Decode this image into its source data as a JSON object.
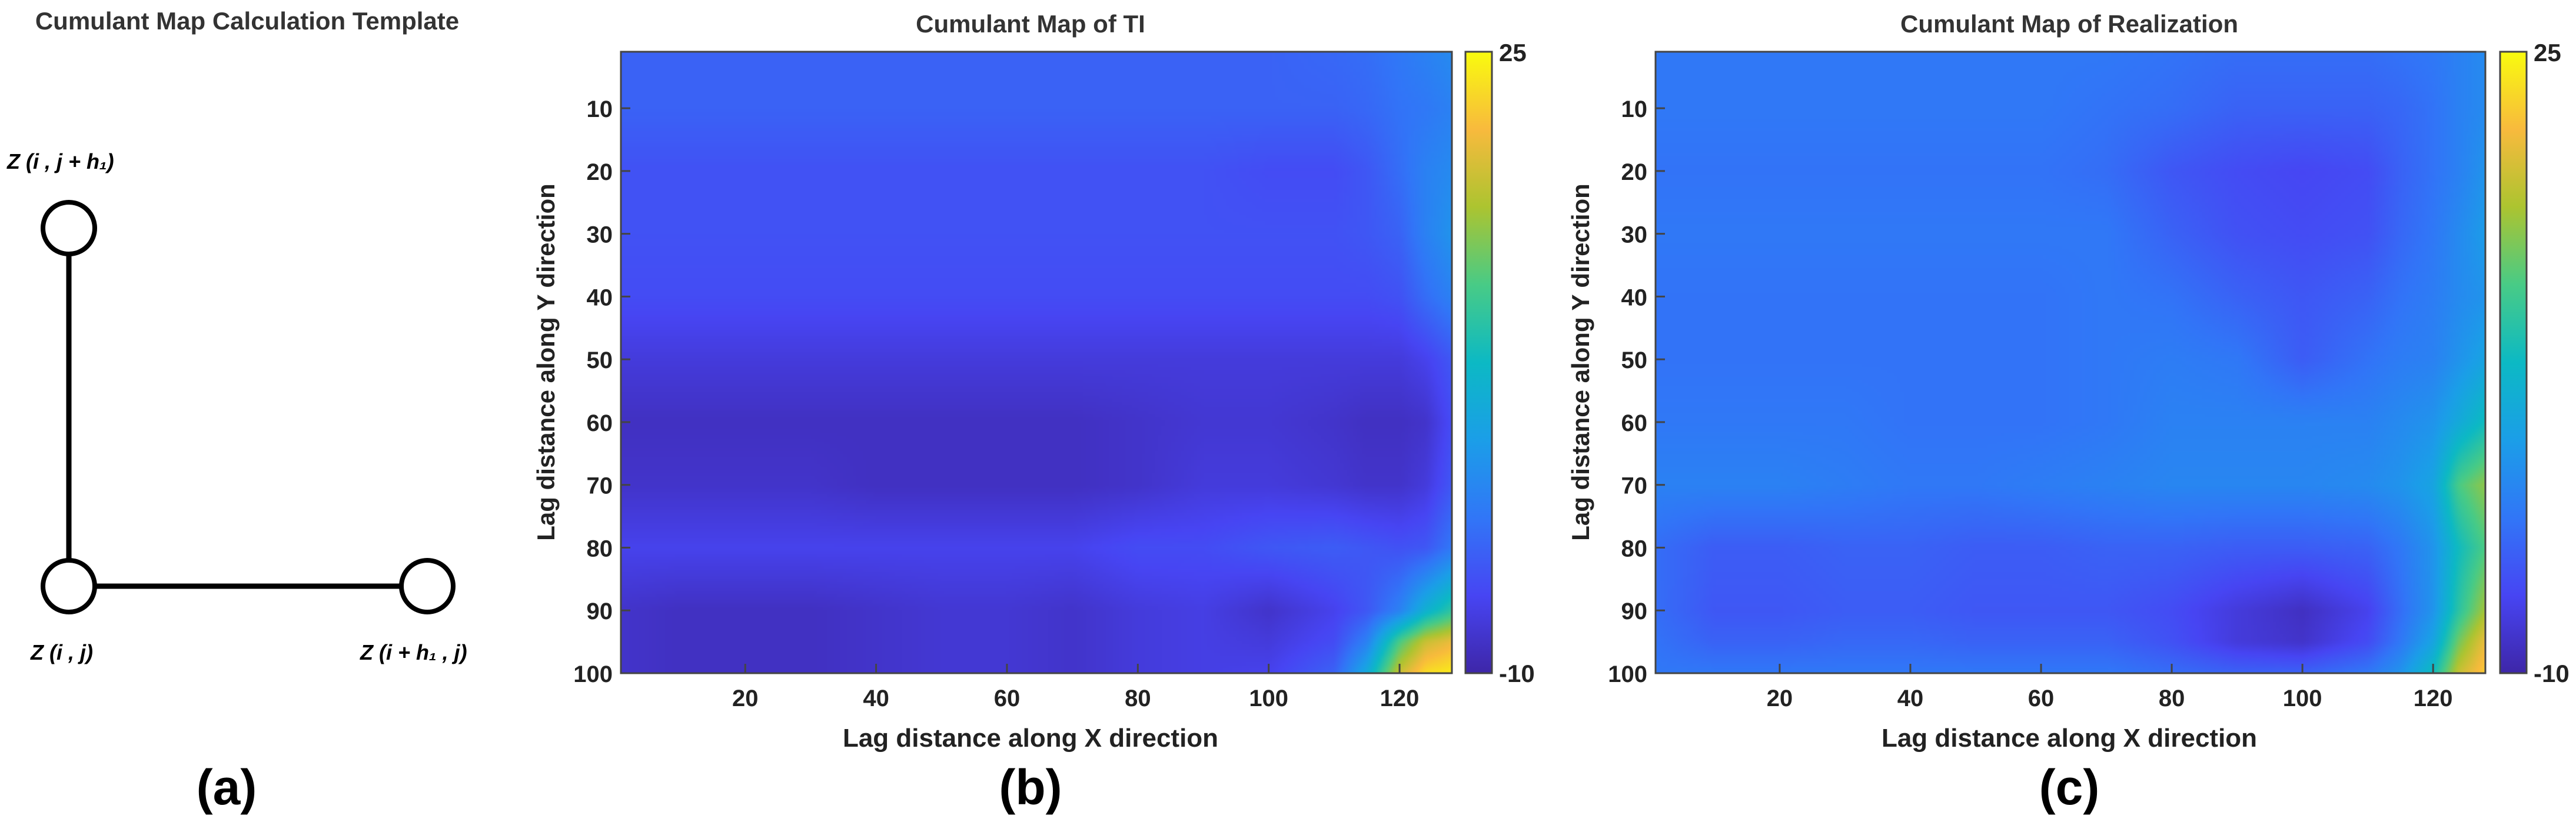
{
  "panel_a": {
    "title": "Cumulant Map Calculation Template",
    "nodes": [
      {
        "id": "top",
        "label": "Z (i , j + h₁)"
      },
      {
        "id": "origin",
        "label": "Z (i , j)"
      },
      {
        "id": "right",
        "label": "Z (i + h₁ , j)"
      }
    ],
    "caption": "(a)"
  },
  "chart_data": [
    {
      "type": "heatmap",
      "title": "Cumulant Map of TI",
      "xlabel": "Lag distance along X direction",
      "ylabel": "Lag distance along Y direction",
      "xlim": [
        1,
        128
      ],
      "ylim": [
        1,
        100
      ],
      "y_reversed": true,
      "x_ticks": [
        20,
        40,
        60,
        80,
        100,
        120
      ],
      "y_ticks": [
        10,
        20,
        30,
        40,
        50,
        60,
        70,
        80,
        90,
        100
      ],
      "colorbar": {
        "min": -10,
        "max": 25,
        "labels": [
          "25",
          "-10"
        ],
        "colormap": "parula"
      },
      "approx_values": {
        "x": [
          1,
          10,
          20,
          30,
          40,
          50,
          60,
          70,
          80,
          90,
          100,
          110,
          115,
          120,
          124,
          128
        ],
        "y": [
          1,
          10,
          20,
          30,
          40,
          50,
          60,
          70,
          80,
          90,
          95,
          100
        ],
        "z": [
          [
            -3,
            -3,
            -3,
            -3,
            -3,
            -3,
            -3,
            -3,
            -3,
            -3,
            -3,
            -2.5,
            -2,
            -1,
            0,
            1
          ],
          [
            -3,
            -3,
            -3,
            -3,
            -3,
            -3,
            -3,
            -3,
            -3,
            -3,
            -3,
            -3,
            -2.5,
            -1.5,
            -1,
            0
          ],
          [
            -4.5,
            -4.5,
            -4.5,
            -4.5,
            -4.5,
            -4.5,
            -4.5,
            -4.5,
            -4.5,
            -4.5,
            -5,
            -5,
            -4,
            -2,
            0,
            1
          ],
          [
            -4.5,
            -4.5,
            -4.5,
            -4.5,
            -4.5,
            -4.5,
            -4.5,
            -4.5,
            -4.5,
            -4.5,
            -4.5,
            -4.5,
            -4,
            -3,
            0,
            2
          ],
          [
            -5,
            -5,
            -5,
            -5,
            -5,
            -5,
            -5,
            -5,
            -5,
            -5,
            -5,
            -5,
            -5,
            -4.5,
            -2,
            0
          ],
          [
            -7,
            -7,
            -7,
            -7,
            -7,
            -7,
            -7,
            -7,
            -7,
            -7,
            -7,
            -7,
            -7,
            -7,
            -6,
            -4
          ],
          [
            -8.5,
            -8.5,
            -8.5,
            -8.5,
            -8.5,
            -8.5,
            -8.5,
            -8.5,
            -8,
            -7.5,
            -7.5,
            -8,
            -8.5,
            -8.5,
            -8,
            -5
          ],
          [
            -8,
            -8,
            -8,
            -8,
            -8.5,
            -8.5,
            -8.5,
            -8.5,
            -8,
            -7,
            -7,
            -7.5,
            -8,
            -8,
            -7,
            -4
          ],
          [
            -6,
            -6,
            -6,
            -6,
            -6,
            -6,
            -6,
            -6,
            -5,
            -5,
            -4,
            -3.5,
            -4,
            -4.5,
            -4,
            -1
          ],
          [
            -8,
            -8.5,
            -8.5,
            -8.5,
            -8,
            -7.5,
            -7.5,
            -8,
            -7,
            -6.5,
            -8,
            -6,
            -4,
            0,
            6,
            10
          ],
          [
            -8,
            -8.5,
            -8.5,
            -8.5,
            -8,
            -7.5,
            -7.5,
            -8,
            -7,
            -6.5,
            -7,
            -5,
            0,
            12,
            18,
            20
          ],
          [
            -8,
            -8.5,
            -8.5,
            -8.5,
            -8,
            -7.5,
            -7.5,
            -8,
            -7,
            -6.5,
            -6,
            -3,
            5,
            18,
            23,
            24
          ]
        ]
      },
      "caption": "(b)"
    },
    {
      "type": "heatmap",
      "title": "Cumulant Map of Realization",
      "xlabel": "Lag distance along X direction",
      "ylabel": "Lag distance along Y direction",
      "xlim": [
        1,
        128
      ],
      "ylim": [
        1,
        100
      ],
      "y_reversed": true,
      "x_ticks": [
        20,
        40,
        60,
        80,
        100,
        120
      ],
      "y_ticks": [
        10,
        20,
        30,
        40,
        50,
        60,
        70,
        80,
        90,
        100
      ],
      "colorbar": {
        "min": -10,
        "max": 25,
        "labels": [
          "25",
          "-10"
        ],
        "colormap": "parula"
      },
      "approx_values": {
        "x": [
          1,
          10,
          20,
          30,
          40,
          50,
          60,
          70,
          80,
          90,
          100,
          110,
          115,
          120,
          124,
          128
        ],
        "y": [
          1,
          10,
          20,
          30,
          40,
          50,
          60,
          70,
          80,
          90,
          95,
          100
        ],
        "z": [
          [
            -1,
            -1,
            -1,
            -1,
            -1,
            -1,
            -1,
            -1,
            -1.5,
            -2,
            -2,
            -2,
            -1.5,
            -1,
            0,
            1
          ],
          [
            -1,
            -1,
            -1,
            -1,
            -1,
            -1,
            -1,
            -1.5,
            -2,
            -3,
            -3,
            -3,
            -2.5,
            -1.5,
            0,
            1
          ],
          [
            -1.5,
            -1.5,
            -1.5,
            -1.5,
            -1.5,
            -1.5,
            -1.5,
            -2,
            -4,
            -5,
            -5.5,
            -5,
            -3,
            -1.5,
            0,
            2
          ],
          [
            -1,
            -1,
            -1,
            -1,
            -1,
            -1,
            -1,
            -1,
            -3,
            -4.5,
            -5,
            -4.5,
            -2.5,
            -1,
            1,
            3
          ],
          [
            -1.5,
            -1.5,
            -1.5,
            -1.5,
            -1.5,
            -1.5,
            -1.5,
            -1,
            -1.5,
            -3,
            -4,
            -3,
            -1.5,
            -0.5,
            1,
            2
          ],
          [
            -1.5,
            -1.5,
            -1.5,
            -1.5,
            -1.5,
            -1.5,
            -1.5,
            -1,
            -0.5,
            -1,
            -3.5,
            -1.5,
            -0.5,
            0,
            2,
            4
          ],
          [
            -1,
            -1,
            -1,
            -1,
            -1.5,
            -1.5,
            -1.5,
            -1,
            0,
            0,
            0,
            0,
            1,
            2,
            5,
            8
          ],
          [
            0,
            0,
            0,
            -0.5,
            -1,
            -1,
            -0.5,
            0,
            0.5,
            0.5,
            0.5,
            1,
            2,
            4,
            12,
            15
          ],
          [
            -2,
            -3.5,
            -3.5,
            -3,
            -3,
            -3.5,
            -3.5,
            -3,
            -3,
            -3.5,
            -3.5,
            -3,
            -1,
            2,
            8,
            12
          ],
          [
            -2,
            -4,
            -4,
            -3.5,
            -3.5,
            -4,
            -4,
            -4,
            -5,
            -7,
            -8.5,
            -6,
            -2,
            2,
            10,
            16
          ],
          [
            -1.5,
            -3,
            -3,
            -2.5,
            -2.5,
            -3,
            -3,
            -3,
            -4.5,
            -7,
            -8,
            -5,
            -1,
            4,
            14,
            20
          ],
          [
            -1,
            -1,
            -1,
            -1,
            -1,
            -1,
            -1,
            -1,
            -2,
            -3,
            -3,
            -1,
            2,
            8,
            18,
            22
          ]
        ]
      },
      "caption": "(c)"
    }
  ]
}
